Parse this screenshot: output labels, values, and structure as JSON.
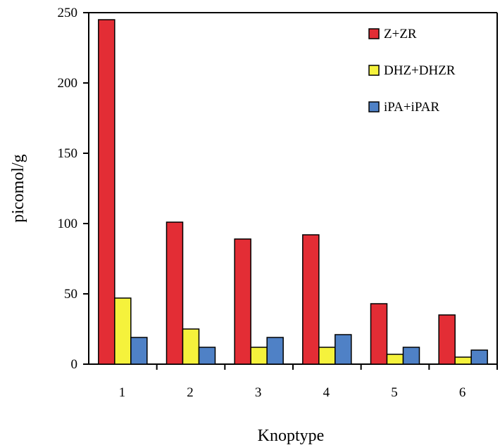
{
  "chart_data": {
    "type": "bar",
    "xlabel": "Knoptype",
    "ylabel": "picomol/g",
    "ylim": [
      0,
      250
    ],
    "yticks": [
      0,
      50,
      100,
      150,
      200,
      250
    ],
    "categories": [
      "1",
      "2",
      "3",
      "4",
      "5",
      "6"
    ],
    "series": [
      {
        "name": "Z+ZR",
        "color": "#e32d35",
        "values": [
          245,
          101,
          89,
          92,
          43,
          35
        ]
      },
      {
        "name": "DHZ+DHZR",
        "color": "#f5f23c",
        "values": [
          47,
          25,
          12,
          12,
          7,
          5
        ]
      },
      {
        "name": "iPA+iPAR",
        "color": "#4f81c6",
        "values": [
          19,
          12,
          19,
          21,
          12,
          10
        ]
      }
    ],
    "legend_position": "top-right",
    "grid": false
  }
}
